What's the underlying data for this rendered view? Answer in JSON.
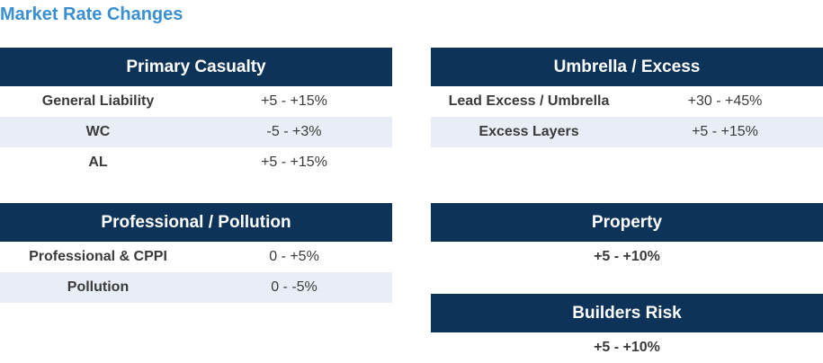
{
  "title": "Market Rate Changes",
  "primary_casualty": {
    "header": "Primary Casualty",
    "rows": [
      {
        "label": "General Liability",
        "value": "+5 - +15%"
      },
      {
        "label": "WC",
        "value": "-5 - +3%"
      },
      {
        "label": "AL",
        "value": "+5 - +15%"
      }
    ]
  },
  "umbrella_excess": {
    "header": "Umbrella / Excess",
    "rows": [
      {
        "label": "Lead Excess / Umbrella",
        "value": "+30 - +45%"
      },
      {
        "label": "Excess Layers",
        "value": "+5 - +15%"
      }
    ]
  },
  "professional_pollution": {
    "header": "Professional / Pollution",
    "rows": [
      {
        "label": "Professional & CPPI",
        "value": "0 - +5%"
      },
      {
        "label": "Pollution",
        "value": "0 - -5%"
      }
    ]
  },
  "property": {
    "header": "Property",
    "value": "+5 - +10%"
  },
  "builders_risk": {
    "header": "Builders Risk",
    "value": "+5 - +10%"
  },
  "colors": {
    "header_bg": "#0e3358",
    "shade_row": "#e9eef6",
    "title": "#3a8fd1"
  }
}
